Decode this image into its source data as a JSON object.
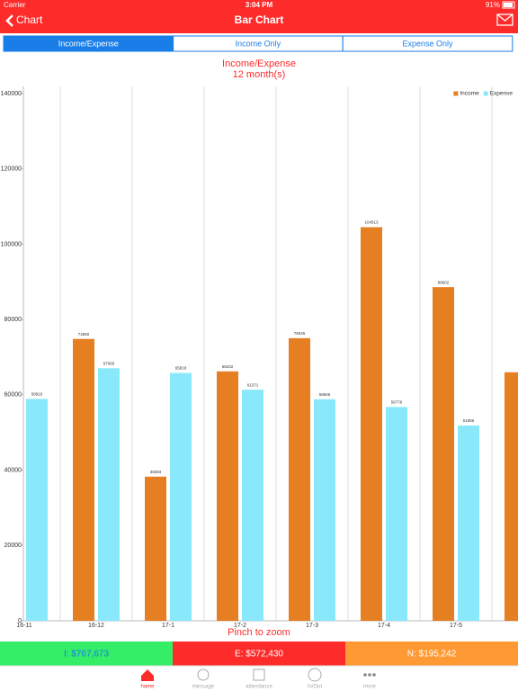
{
  "status_bar": {
    "carrier": "Carrier",
    "time": "3:04 PM",
    "battery": "91%"
  },
  "nav_bar": {
    "back": "Chart",
    "title": "Bar Chart"
  },
  "segments": [
    "Income/Expense",
    "Income Only",
    "Expense Only"
  ],
  "chart_data": {
    "type": "bar",
    "title": "Income/Expense",
    "subtitle": "12 month(s)",
    "categories": [
      "16-11",
      "16-12",
      "17-1",
      "17-2",
      "17-3",
      "17-4",
      "17-5",
      null
    ],
    "series": [
      {
        "name": "Income",
        "color": "#e67e22",
        "values": [
          null,
          74850,
          38283,
          66232,
          75046,
          104513,
          88602,
          66000
        ]
      },
      {
        "name": "Expense",
        "color": "#8ae8fb",
        "values": [
          58916,
          67065,
          65818,
          61371,
          58846,
          56776,
          51855,
          null
        ]
      }
    ],
    "ylim": [
      0,
      140000
    ],
    "yticks": [
      0,
      20000,
      40000,
      60000,
      80000,
      100000,
      120000,
      140000
    ],
    "grid": true,
    "legend": "top-right"
  },
  "hint": "Pinch to zoom",
  "summary": [
    "I: $767,673",
    "E: $572,430",
    "N: $195,242"
  ],
  "tabs": [
    "home",
    "message",
    "attendance",
    "In/Out",
    "more"
  ]
}
